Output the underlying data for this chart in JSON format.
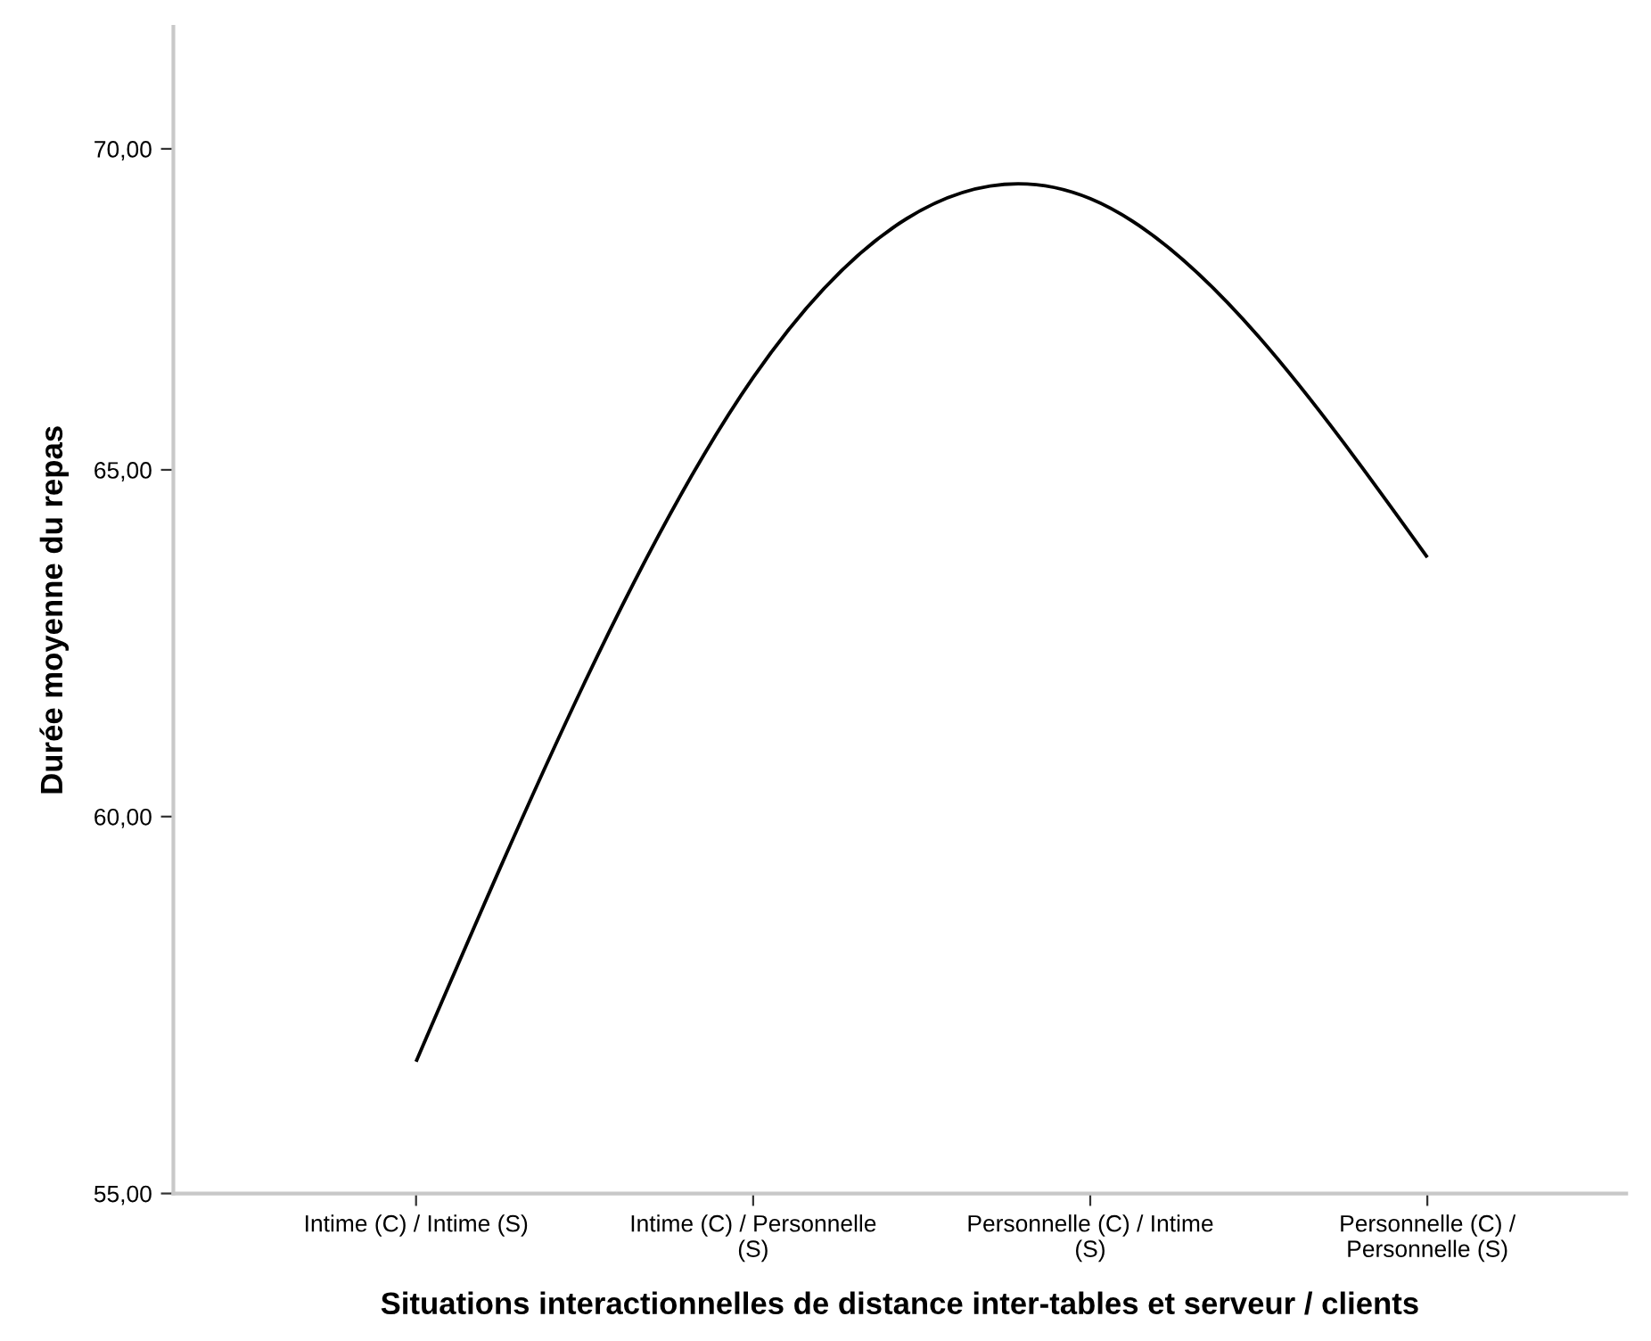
{
  "chart_data": {
    "type": "line",
    "xlabel": "Situations interactionnelles de distance inter-tables et serveur / clients",
    "ylabel": "Durée moyenne du repas",
    "categories": [
      "Intime (C) / Intime (S)",
      "Intime (C) / Personnelle\n(S)",
      "Personnelle (C) / Intime\n(S)",
      "Personnelle (C) /\nPersonnelle (S)"
    ],
    "series": [
      {
        "color": "#000000",
        "values": [
          56.7,
          66.4,
          69.2,
          63.7
        ]
      }
    ],
    "log": "y",
    "ylim": [
      55,
      72
    ],
    "yticks": [
      {
        "value": 55,
        "label": "55,00"
      },
      {
        "value": 60,
        "label": "60,00"
      },
      {
        "value": 65,
        "label": "65,00"
      },
      {
        "value": 70,
        "label": "70,00"
      }
    ],
    "grid": false,
    "marker": "none",
    "line_style": "solid"
  }
}
